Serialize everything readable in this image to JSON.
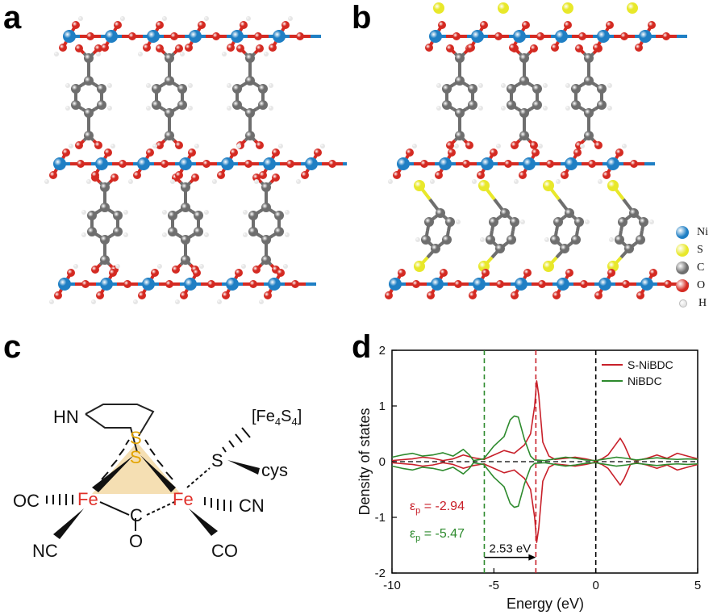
{
  "panels": {
    "a": {
      "letter": "a"
    },
    "b": {
      "letter": "b"
    },
    "c": {
      "letter": "c"
    },
    "d": {
      "letter": "d"
    }
  },
  "atom_legend": [
    {
      "symbol": "Ni",
      "color": "#1f7fc4"
    },
    {
      "symbol": "S",
      "color": "#e8e82a"
    },
    {
      "symbol": "C",
      "color": "#6e6e6e"
    },
    {
      "symbol": "O",
      "color": "#d42a22"
    },
    {
      "symbol": "H",
      "color": "#e6e6e6"
    }
  ],
  "molecule_c": {
    "labels": {
      "hn": "HN",
      "s_top": "S",
      "s_bottom": "S",
      "fe_left": "Fe",
      "fe_right": "Fe",
      "oc": "OC",
      "nc": "NC",
      "c": "C",
      "o": "O",
      "cn": "CN",
      "co": "CO",
      "s_cys": "S",
      "cys": "cys",
      "cluster": "[Fe4S4]"
    },
    "colors": {
      "fe": "#e0302a",
      "s": "#e3a400",
      "shade": "#f3d9a6"
    }
  },
  "chart_data": {
    "type": "line",
    "xlabel": "Energy (eV)",
    "ylabel": "Density of states",
    "xlim": [
      -10,
      5
    ],
    "ylim": [
      -2,
      2
    ],
    "xticks": [
      "-10",
      "-5",
      "0",
      "5"
    ],
    "yticks": [
      "-2",
      "-1",
      "0",
      "1",
      "2"
    ],
    "legend_placement": "top-right",
    "series": [
      {
        "name": "S-NiBDC",
        "color": "#c8202a",
        "x": [
          -10,
          -9,
          -8.5,
          -8,
          -7.5,
          -7,
          -6.5,
          -6,
          -5.5,
          -5,
          -4.5,
          -4,
          -3.5,
          -3.2,
          -3.0,
          -2.9,
          -2.8,
          -2.6,
          -2.3,
          -2,
          -1.5,
          -1,
          -0.5,
          0,
          0.3,
          0.6,
          1.0,
          1.2,
          1.4,
          1.7,
          2,
          2.5,
          3,
          3.5,
          4,
          4.5,
          5
        ],
        "y": [
          0.02,
          0.05,
          0.08,
          0.06,
          0.02,
          0.05,
          0.12,
          0.07,
          0.04,
          0.12,
          0.2,
          0.15,
          0.3,
          0.5,
          1.0,
          1.45,
          1.2,
          0.35,
          0.1,
          0.04,
          0.06,
          0.08,
          0.05,
          0.01,
          0.05,
          0.12,
          0.32,
          0.42,
          0.3,
          0.05,
          0.02,
          0.06,
          0.12,
          0.06,
          0.15,
          0.1,
          0.05
        ]
      },
      {
        "name": "NiBDC",
        "color": "#2d8a2d",
        "x": [
          -10,
          -9.5,
          -9,
          -8.5,
          -8,
          -7.5,
          -7,
          -6.5,
          -6.2,
          -6,
          -5.5,
          -5,
          -4.5,
          -4.2,
          -4,
          -3.8,
          -3.5,
          -3.2,
          -3,
          -2.5,
          -2,
          -1.5,
          -1,
          -0.5,
          0,
          0.5,
          1,
          1.5,
          2,
          2.5,
          3,
          3.5,
          4,
          4.5,
          5
        ],
        "y": [
          0.08,
          0.12,
          0.15,
          0.1,
          0.12,
          0.16,
          0.1,
          0.22,
          0.12,
          0.02,
          0.05,
          0.28,
          0.45,
          0.75,
          0.82,
          0.8,
          0.4,
          0.1,
          0.03,
          0.02,
          0.05,
          0.08,
          0.06,
          0.03,
          0.02,
          0.05,
          0.08,
          0.06,
          0.03,
          0.05,
          0.07,
          0.05,
          0.04,
          0.05,
          0.04
        ]
      }
    ],
    "vlines": [
      {
        "x": -5.47,
        "color": "#2d8a2d"
      },
      {
        "x": -2.94,
        "color": "#c8202a"
      },
      {
        "x": 0,
        "color": "#000000"
      }
    ],
    "annotations": {
      "ep_red_sym": "ε",
      "ep_red_sub": "p",
      "ep_red_val": " = -2.94",
      "ep_green_sym": "ε",
      "ep_green_sub": "p",
      "ep_green_val": " = -5.47",
      "gap_label": "2.53 eV"
    }
  }
}
